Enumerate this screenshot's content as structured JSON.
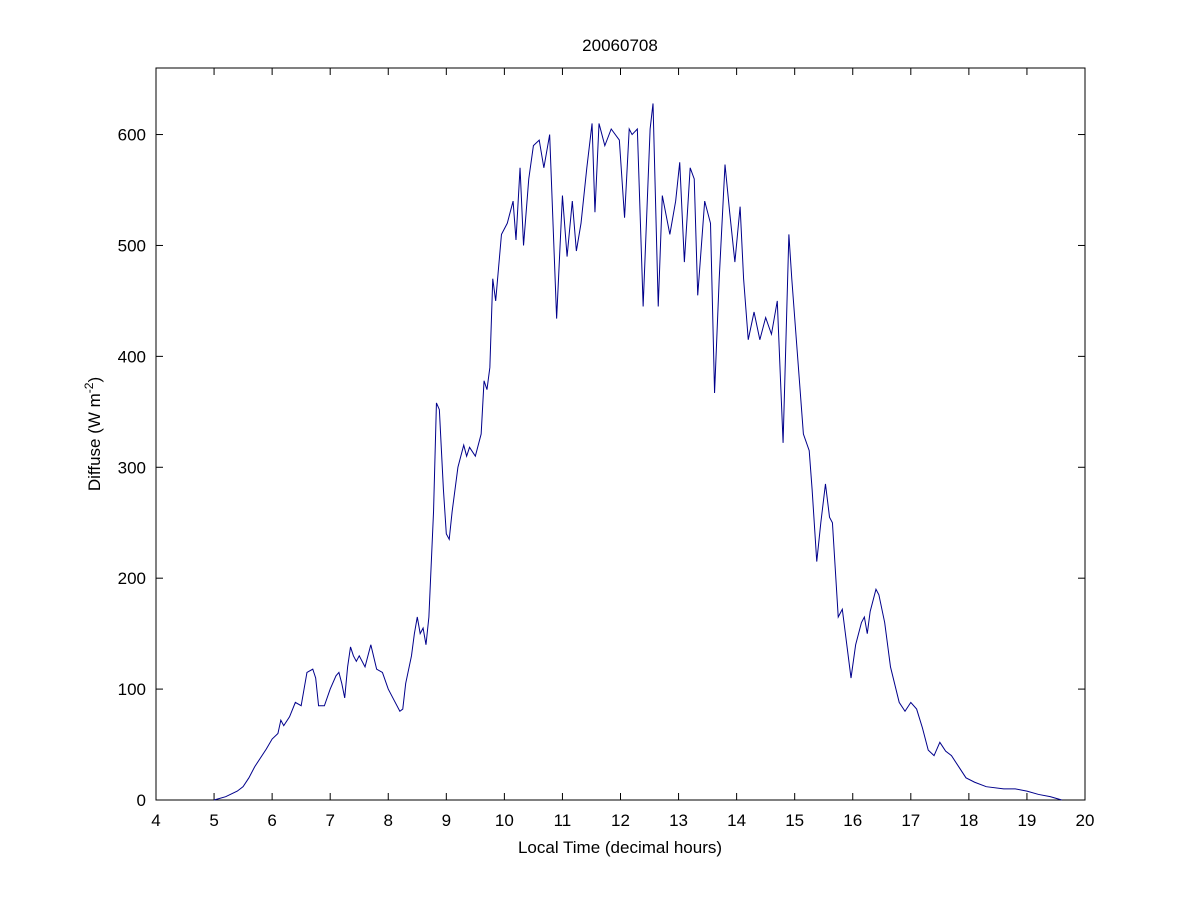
{
  "chart_data": {
    "type": "line",
    "title": "20060708",
    "xlabel": "Local Time (decimal hours)",
    "ylabel": [
      "Diffuse (W m",
      "-2",
      ")"
    ],
    "color": "#00008b",
    "xlim": [
      4,
      20
    ],
    "ylim": [
      0,
      660
    ],
    "xticks": [
      4,
      5,
      6,
      7,
      8,
      9,
      10,
      11,
      12,
      13,
      14,
      15,
      16,
      17,
      18,
      19,
      20
    ],
    "yticks": [
      0,
      100,
      200,
      300,
      400,
      500,
      600
    ],
    "x": [
      5.0,
      5.2,
      5.4,
      5.5,
      5.6,
      5.7,
      5.8,
      5.9,
      6.0,
      6.1,
      6.15,
      6.2,
      6.3,
      6.4,
      6.5,
      6.55,
      6.6,
      6.7,
      6.75,
      6.8,
      6.9,
      7.0,
      7.1,
      7.15,
      7.2,
      7.25,
      7.3,
      7.35,
      7.4,
      7.45,
      7.5,
      7.6,
      7.7,
      7.8,
      7.9,
      8.0,
      8.1,
      8.2,
      8.25,
      8.3,
      8.4,
      8.45,
      8.5,
      8.55,
      8.6,
      8.65,
      8.7,
      8.78,
      8.83,
      8.88,
      8.95,
      9.0,
      9.05,
      9.1,
      9.2,
      9.3,
      9.35,
      9.4,
      9.5,
      9.6,
      9.65,
      9.7,
      9.75,
      9.8,
      9.85,
      9.9,
      9.95,
      10.05,
      10.15,
      10.2,
      10.27,
      10.33,
      10.42,
      10.5,
      10.6,
      10.68,
      10.78,
      10.9,
      11.0,
      11.08,
      11.17,
      11.24,
      11.32,
      11.42,
      11.51,
      11.56,
      11.63,
      11.73,
      11.84,
      11.98,
      12.07,
      12.15,
      12.2,
      12.29,
      12.39,
      12.51,
      12.56,
      12.65,
      12.72,
      12.85,
      12.95,
      13.02,
      13.1,
      13.2,
      13.27,
      13.33,
      13.45,
      13.55,
      13.62,
      13.7,
      13.8,
      13.88,
      13.97,
      14.06,
      14.12,
      14.2,
      14.3,
      14.4,
      14.5,
      14.6,
      14.7,
      14.8,
      14.9,
      14.95,
      15.05,
      15.15,
      15.25,
      15.3,
      15.38,
      15.45,
      15.53,
      15.6,
      15.65,
      15.75,
      15.82,
      15.97,
      16.05,
      16.15,
      16.2,
      16.25,
      16.3,
      16.4,
      16.45,
      16.55,
      16.65,
      16.8,
      16.9,
      17.0,
      17.1,
      17.2,
      17.3,
      17.4,
      17.5,
      17.6,
      17.7,
      17.85,
      17.95,
      18.1,
      18.3,
      18.6,
      18.8,
      19.0,
      19.2,
      19.4,
      19.6
    ],
    "values": [
      0,
      3,
      8,
      12,
      20,
      30,
      38,
      46,
      55,
      60,
      72,
      67,
      75,
      88,
      85,
      100,
      115,
      118,
      110,
      85,
      85,
      100,
      112,
      115,
      105,
      92,
      120,
      138,
      130,
      125,
      130,
      120,
      140,
      118,
      115,
      100,
      90,
      80,
      82,
      105,
      130,
      150,
      165,
      150,
      155,
      140,
      165,
      260,
      358,
      352,
      280,
      240,
      235,
      260,
      300,
      320,
      310,
      318,
      310,
      330,
      378,
      370,
      390,
      470,
      450,
      480,
      510,
      520,
      540,
      505,
      570,
      500,
      560,
      590,
      595,
      570,
      600,
      434,
      545,
      490,
      540,
      495,
      520,
      570,
      610,
      530,
      610,
      590,
      605,
      595,
      525,
      605,
      600,
      605,
      445,
      605,
      628,
      445,
      545,
      510,
      540,
      575,
      485,
      570,
      560,
      455,
      540,
      520,
      367,
      470,
      573,
      530,
      485,
      535,
      470,
      415,
      440,
      415,
      435,
      420,
      450,
      322,
      510,
      470,
      400,
      330,
      315,
      280,
      215,
      250,
      285,
      255,
      250,
      165,
      172,
      110,
      140,
      160,
      165,
      150,
      170,
      190,
      185,
      160,
      120,
      88,
      80,
      88,
      82,
      65,
      45,
      40,
      52,
      44,
      40,
      28,
      20,
      16,
      12,
      10,
      10,
      8,
      5,
      3,
      0
    ]
  }
}
